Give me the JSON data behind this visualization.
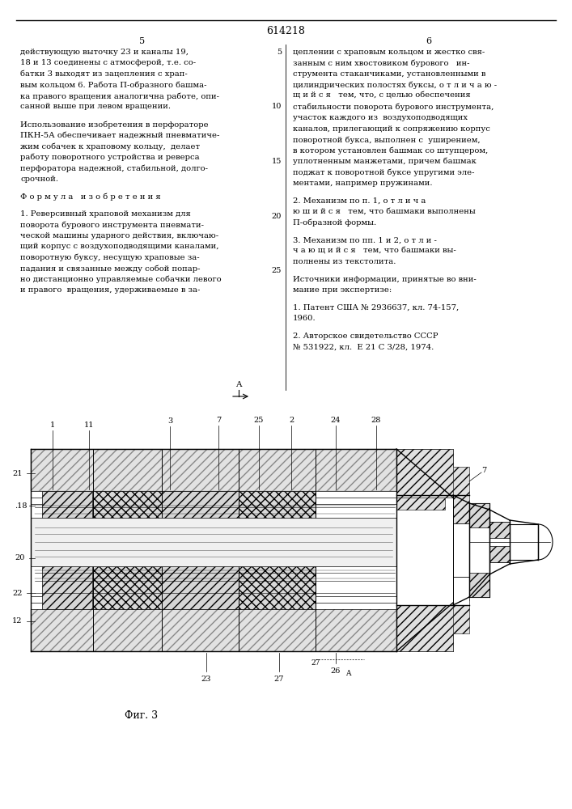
{
  "page_number": "614218",
  "col_left_num": "5",
  "col_right_num": "6",
  "bg_color": "#ffffff",
  "text_color": "#000000",
  "left_col_lines": [
    "действующую выточку 23 и каналы 19,",
    "18 и 13 соединены с атмосферой, т.е. со-",
    "батки 3 выходят из зацепления с храп-",
    "вым кольцом 6. Работа П-образного башма-",
    "ка правого вращения аналогична работе, опи-",
    "санной выше при левом вращении.",
    "",
    "Использование изобретения в перфораторе",
    "ПКН-5А обеспечивает надежный пневматиче-",
    "жим собачек к храповому кольцу,  делает",
    "работу поворотного устройства и реверса",
    "перфоратора надежной, стабильной, долго-",
    "срочной.",
    "",
    "Ф о р м у л а   и з о б р е т е н и я",
    "",
    "1. Реверсивный храповой механизм для",
    "поворота бурового инструмента пневмати-",
    "ческой машины ударного действия, включаю-",
    "щий корпус с воздухоподводящими каналами,",
    "поворотную буксу, несущую храповые за-",
    "падания и связанные между собой попар-",
    "но дистанционно управляемые собачки левого",
    "и правого  вращения, удерживаемые в за-"
  ],
  "right_col_lines": [
    "цеплении с храповым кольцом и жестко свя-",
    "занным с ним хвостовиком бурового   ин-",
    "струмента стаканчиками, установленными в",
    "цилиндрических полостях буксы, о т л и ч а ю -",
    "щ и й с я   тем, что, с целью обеспечения",
    "стабильности поворота бурового инструмента,",
    "участок каждого из  воздухоподводящих",
    "каналов, прилегающий к сопряжению корпус",
    "поворотной букса, выполнен с  уширением,",
    "в котором установлен башмак со штупцером,",
    "уплотненным манжетами, причем башмак",
    "поджат к поворотной буксе упругими эле-",
    "ментами, например пружинами.",
    "",
    "2. Механизм по п. 1, о т л и ч а",
    "ю ш и й с я   тем, что башмаки выполнены",
    "П-образной формы.",
    "",
    "3. Механизм по пп. 1 и 2, о т л и -",
    "ч а ю щ и й с я   тем, что башмаки вы-",
    "полнены из текстолита.",
    "",
    "Источники информации, принятые во вни-",
    "мание при экспертизе:",
    "",
    "1. Патент США № 2936637, кл. 74-157,",
    "1960.",
    "",
    "2. Авторское свидетельство СССР",
    "№ 531922, кл.  Е 21 С 3/28, 1974."
  ],
  "line_numbers": [
    "10",
    "15",
    "20",
    "25"
  ],
  "drawing_fig_label": "Фиг. 3"
}
